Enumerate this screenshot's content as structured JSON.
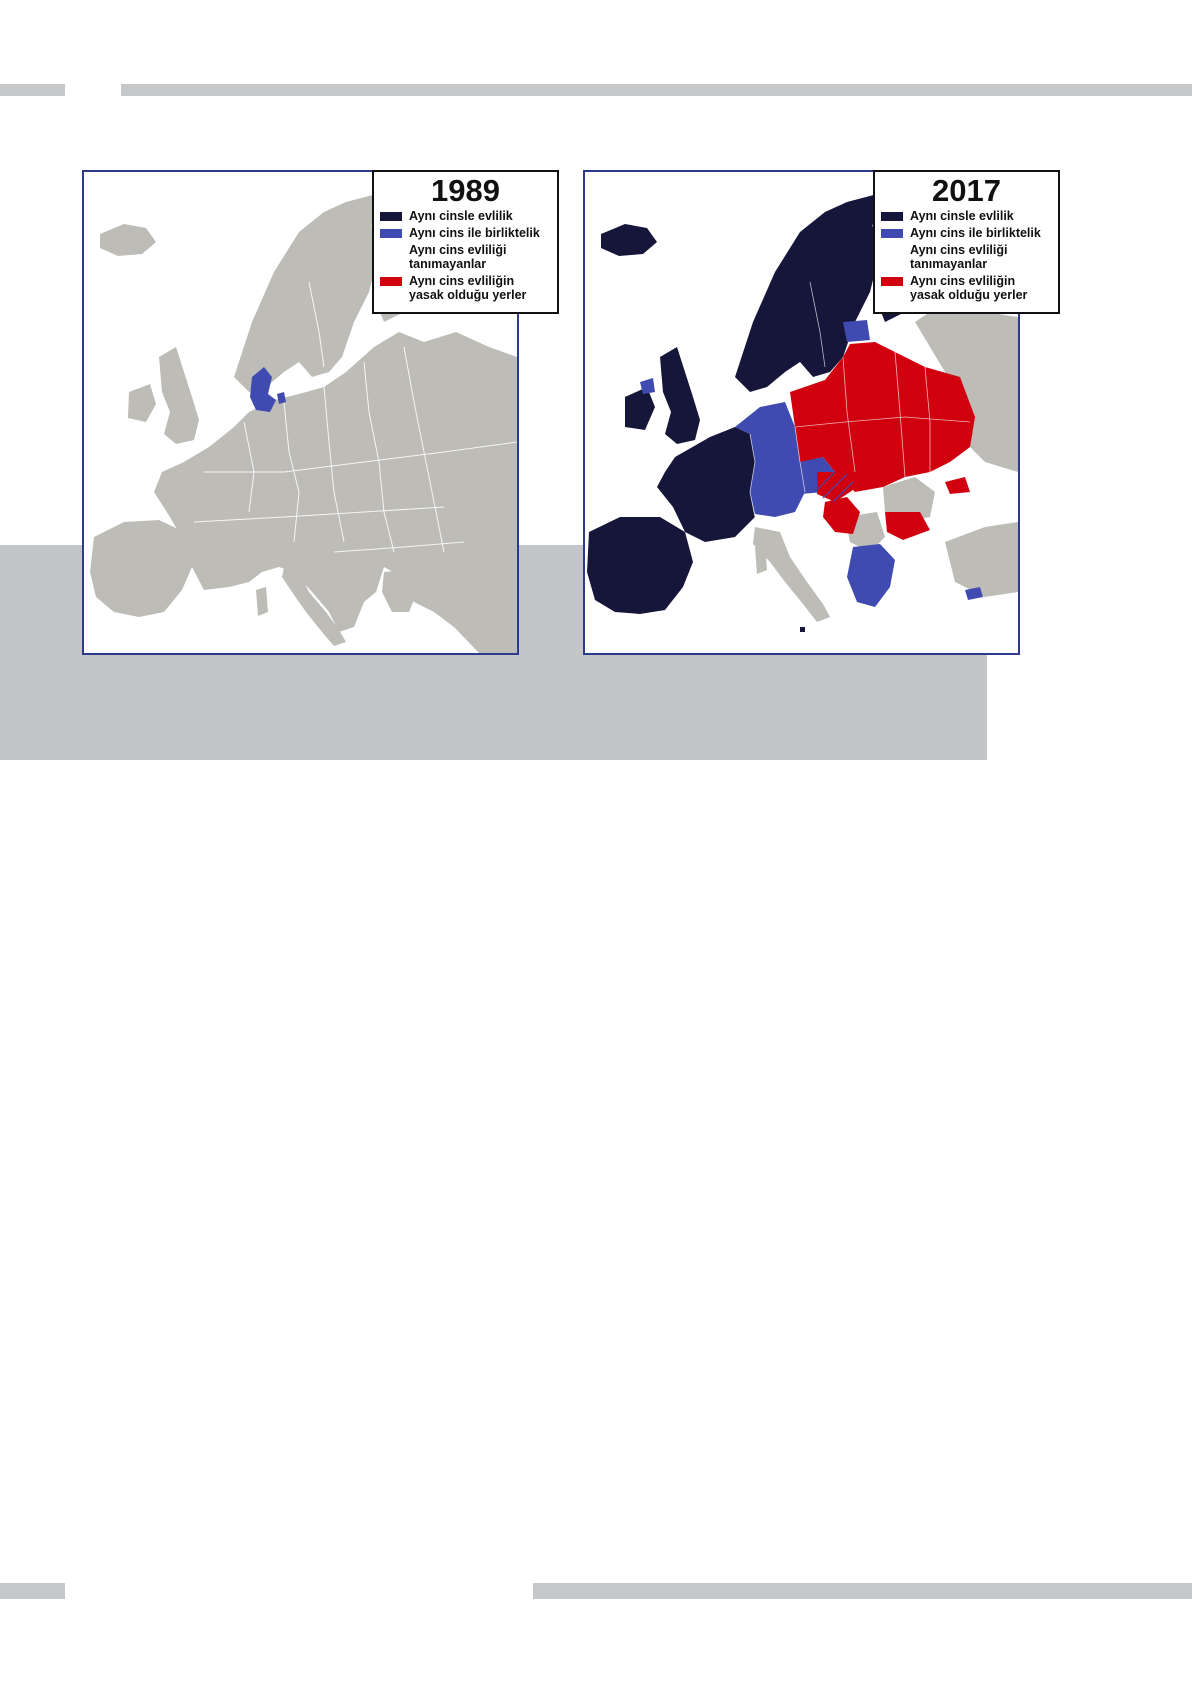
{
  "colors": {
    "page_rule": "#c6c7c9",
    "band": "#c4c5c7",
    "map_border": "#2e3a8c",
    "land_gray": "#bdbcb6",
    "marriage": "#16153a",
    "union": "#3f4bb0",
    "not_recognized": "#ffffff",
    "banned": "#d0000f"
  },
  "maps": [
    {
      "year": "1989",
      "legend": [
        {
          "label": "Aynı cinsle evlilik",
          "icon": "swatch-dark-navy"
        },
        {
          "label": "Aynı cins ile birliktelik",
          "icon": "swatch-blue"
        },
        {
          "label": "Aynı cins evliliği tanımayanlar",
          "icon": "swatch-white"
        },
        {
          "label": "Aynı cins evliliğin yasak olduğu yerler",
          "icon": "swatch-red"
        }
      ],
      "regions": {
        "same_sex_marriage": [],
        "same_sex_union": [
          "Denmark"
        ],
        "banned": []
      }
    },
    {
      "year": "2017",
      "legend": [
        {
          "label": "Aynı cinsle evlilik",
          "icon": "swatch-dark-navy"
        },
        {
          "label": "Aynı cins ile birliktelik",
          "icon": "swatch-blue"
        },
        {
          "label": "Aynı cins evliliği tanımayanlar",
          "icon": "swatch-white"
        },
        {
          "label": "Aynı cins evliliğin yasak olduğu yerler",
          "icon": "swatch-red"
        }
      ],
      "regions": {
        "same_sex_marriage": [
          "Iceland",
          "Norway",
          "Sweden",
          "Finland",
          "Denmark",
          "United Kingdom",
          "Ireland",
          "France",
          "Spain",
          "Portugal",
          "Belgium",
          "Netherlands",
          "Luxembourg",
          "Malta"
        ],
        "same_sex_union": [
          "Germany",
          "Austria",
          "Switzerland",
          "Czech Republic",
          "Slovenia",
          "Estonia",
          "Greece",
          "Cyprus",
          "Northern Ireland"
        ],
        "banned": [
          "Poland",
          "Lithuania",
          "Latvia",
          "Belarus",
          "Ukraine",
          "Slovakia",
          "Hungary",
          "Bulgaria",
          "Serbia",
          "Montenegro",
          "Macedonia",
          "Moldova",
          "Georgia"
        ]
      }
    }
  ]
}
